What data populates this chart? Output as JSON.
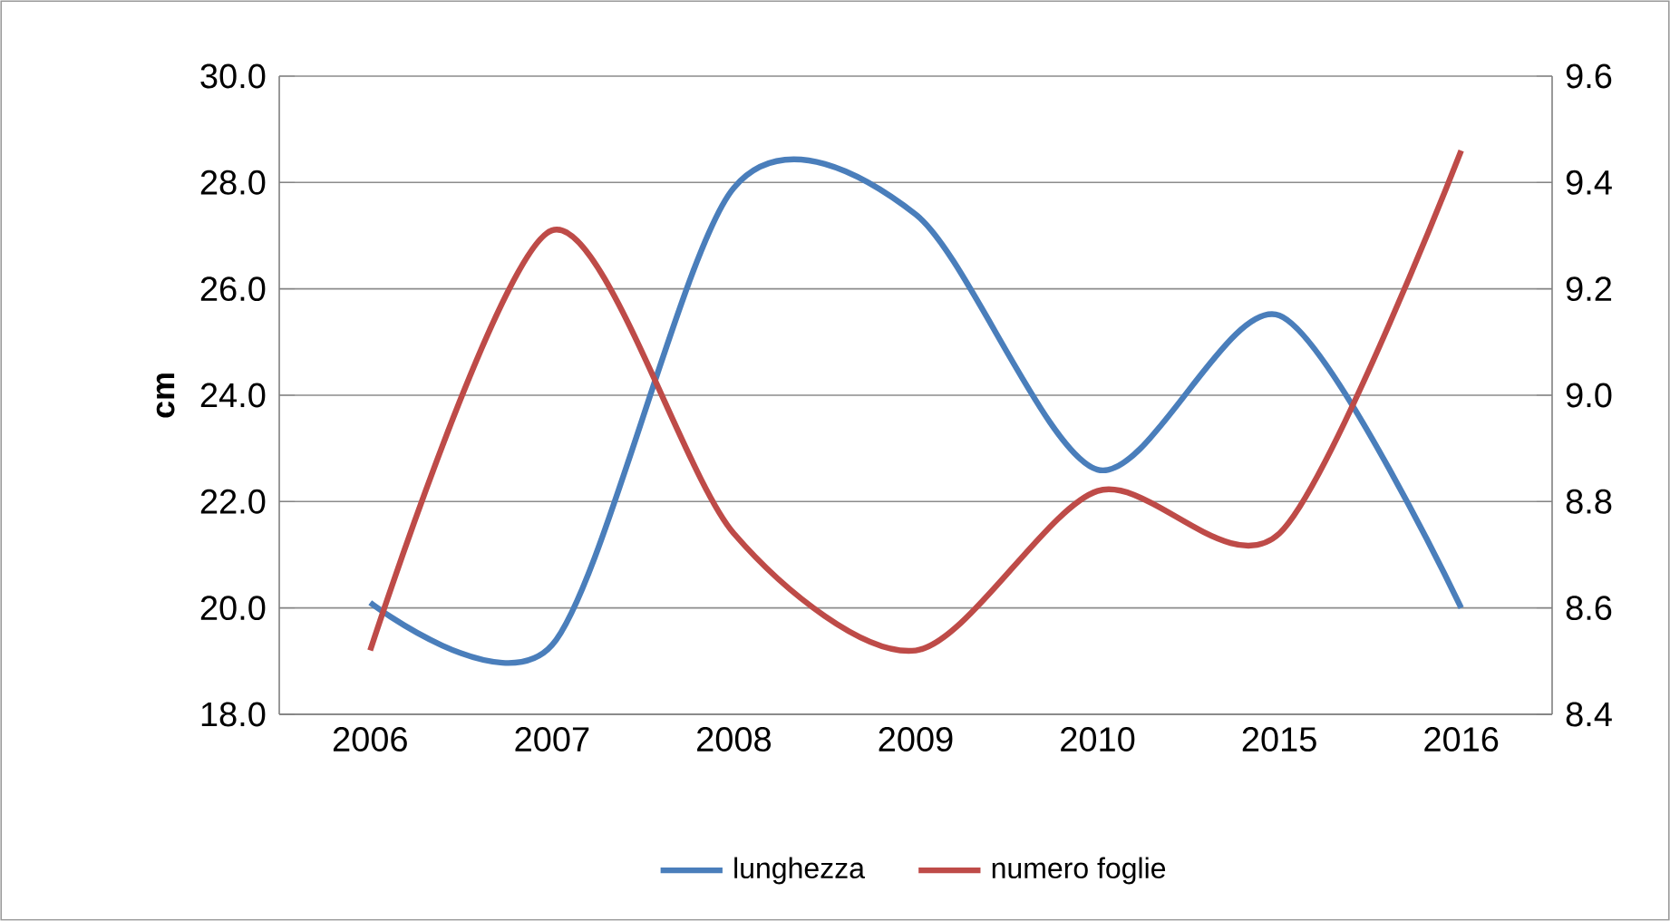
{
  "chart_data": {
    "type": "line",
    "ylabel": "cm",
    "categories": [
      "2006",
      "2007",
      "2008",
      "2009",
      "2010",
      "2015",
      "2016"
    ],
    "series": [
      {
        "name": "lunghezza",
        "color": "#4a7ebb",
        "values": [
          20.1,
          19.3,
          27.9,
          27.4,
          22.6,
          25.5,
          20.0
        ]
      },
      {
        "name": "numero foglie",
        "color": "#be4b48",
        "axis": "y2",
        "values": [
          8.52,
          9.31,
          8.74,
          8.52,
          8.82,
          8.74,
          9.46
        ]
      }
    ],
    "ylim": [
      18,
      30
    ],
    "yticks": [
      {
        "value": 18,
        "label": "18.0"
      },
      {
        "value": 20,
        "label": "20.0"
      },
      {
        "value": 22,
        "label": "22.0"
      },
      {
        "value": 24,
        "label": "24.0"
      },
      {
        "value": 26,
        "label": "26.0"
      },
      {
        "value": 28,
        "label": "28.0"
      },
      {
        "value": 30,
        "label": "30.0"
      }
    ],
    "y2lim": [
      8.4,
      9.6
    ],
    "y2ticks": [
      {
        "value": 8.4,
        "label": "8.4"
      },
      {
        "value": 8.6,
        "label": "8.6"
      },
      {
        "value": 8.8,
        "label": "8.8"
      },
      {
        "value": 9.0,
        "label": "9.0"
      },
      {
        "value": 9.2,
        "label": "9.2"
      },
      {
        "value": 9.4,
        "label": "9.4"
      },
      {
        "value": 9.6,
        "label": "9.6"
      }
    ],
    "grid": "y",
    "legend": "bottom",
    "marker": "none",
    "line_style": "solid"
  }
}
